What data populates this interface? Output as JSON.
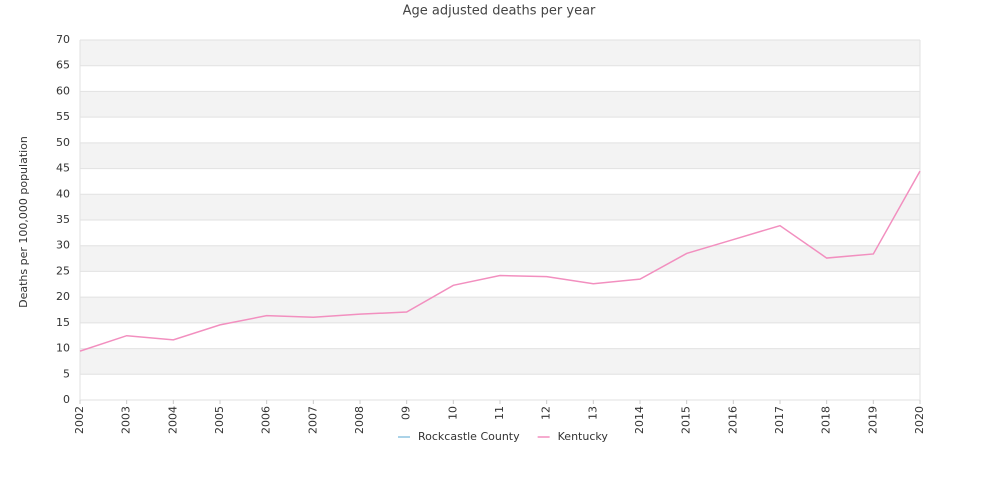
{
  "chart_data": {
    "type": "line",
    "title": "Age adjusted deaths per year",
    "y_label": "Deaths per 100,000 population",
    "categories": [
      "2002",
      "2003",
      "2004",
      "2005",
      "2006",
      "2007",
      "2008",
      "09",
      "10",
      "11",
      "12",
      "13",
      "2014",
      "2015",
      "2016",
      "2017",
      "2018",
      "2019",
      "2020"
    ],
    "series": [
      {
        "name": "Rockcastle County",
        "color": "#8fc4e0",
        "values": [
          null,
          null,
          null,
          null,
          null,
          null,
          null,
          null,
          null,
          null,
          null,
          null,
          null,
          null,
          null,
          null,
          null,
          null,
          null
        ]
      },
      {
        "name": "Kentucky",
        "color": "#f28fbf",
        "values": [
          9.5,
          12.5,
          11.7,
          14.6,
          16.4,
          16.1,
          16.7,
          17.1,
          22.3,
          24.2,
          24.0,
          22.6,
          23.5,
          28.5,
          31.2,
          33.9,
          27.6,
          28.4,
          44.5
        ]
      }
    ],
    "ylim": [
      0,
      70
    ],
    "yticks": [
      0,
      5,
      10,
      15,
      20,
      25,
      30,
      35,
      40,
      45,
      50,
      55,
      60,
      65,
      70
    ],
    "grid": true,
    "legend": "bottom"
  }
}
